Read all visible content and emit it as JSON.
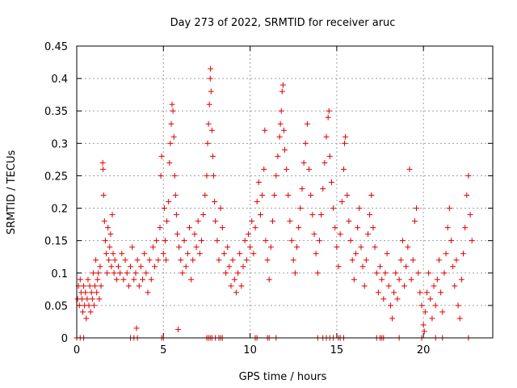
{
  "chart_data": {
    "type": "scatter",
    "title": "Day 273 of 2022, SRMTID for receiver aruc",
    "xlabel": "GPS time / hours",
    "ylabel": "SRMTID / TECUs",
    "xlim": [
      0,
      24
    ],
    "ylim": [
      0,
      0.45
    ],
    "xticks": [
      0,
      5,
      10,
      15,
      20
    ],
    "xtick_labels": [
      "0",
      "5",
      "10",
      "15",
      "20"
    ],
    "yticks": [
      0,
      0.05,
      0.1,
      0.15,
      0.2,
      0.25,
      0.3,
      0.35,
      0.4,
      0.45
    ],
    "ytick_labels": [
      "0",
      "0.05",
      "0.1",
      "0.15",
      "0.2",
      "0.25",
      "0.3",
      "0.35",
      "0.4",
      "0.45"
    ],
    "grid": true,
    "marker": "+",
    "color": "#e00000",
    "series": [
      {
        "name": "SRMTID",
        "points": [
          [
            0.05,
            0.06
          ],
          [
            0.1,
            0.08
          ],
          [
            0.15,
            0.05
          ],
          [
            0.2,
            0.09
          ],
          [
            0.25,
            0.07
          ],
          [
            0.3,
            0.06
          ],
          [
            0.35,
            0.04
          ],
          [
            0.4,
            0.08
          ],
          [
            0.45,
            0.05
          ],
          [
            0.5,
            0.07
          ],
          [
            0.55,
            0.03
          ],
          [
            0.6,
            0.06
          ],
          [
            0.65,
            0.09
          ],
          [
            0.7,
            0.05
          ],
          [
            0.75,
            0.08
          ],
          [
            0.8,
            0.04
          ],
          [
            0.85,
            0.07
          ],
          [
            0.9,
            0.06
          ],
          [
            0.95,
            0.1
          ],
          [
            1.0,
            0.05
          ],
          [
            1.05,
            0.08
          ],
          [
            1.1,
            0.12
          ],
          [
            1.15,
            0.07
          ],
          [
            1.2,
            0.09
          ],
          [
            1.25,
            0.1
          ],
          [
            1.3,
            0.06
          ],
          [
            1.35,
            0.11
          ],
          [
            1.4,
            0.08
          ],
          [
            1.5,
            0.27
          ],
          [
            1.52,
            0.26
          ],
          [
            1.55,
            0.22
          ],
          [
            1.6,
            0.18
          ],
          [
            1.65,
            0.15
          ],
          [
            1.7,
            0.13
          ],
          [
            1.75,
            0.1
          ],
          [
            1.8,
            0.17
          ],
          [
            1.85,
            0.12
          ],
          [
            1.9,
            0.14
          ],
          [
            1.95,
            0.16
          ],
          [
            2.0,
            0.11
          ],
          [
            2.05,
            0.19
          ],
          [
            2.1,
            0.13
          ],
          [
            2.15,
            0.1
          ],
          [
            2.2,
            0.12
          ],
          [
            2.3,
            0.09
          ],
          [
            2.4,
            0.11
          ],
          [
            2.5,
            0.1
          ],
          [
            2.6,
            0.13
          ],
          [
            2.7,
            0.09
          ],
          [
            2.8,
            0.12
          ],
          [
            2.9,
            0.1
          ],
          [
            3.0,
            0.08
          ],
          [
            3.1,
            0.11
          ],
          [
            3.2,
            0.14
          ],
          [
            3.3,
            0.09
          ],
          [
            3.4,
            0.1
          ],
          [
            3.45,
            0.015
          ],
          [
            3.5,
            0.12
          ],
          [
            3.6,
            0.08
          ],
          [
            3.7,
            0.11
          ],
          [
            3.8,
            0.09
          ],
          [
            3.9,
            0.13
          ],
          [
            4.0,
            0.1
          ],
          [
            4.1,
            0.07
          ],
          [
            4.2,
            0.12
          ],
          [
            4.3,
            0.09
          ],
          [
            4.4,
            0.14
          ],
          [
            4.5,
            0.11
          ],
          [
            4.6,
            0.15
          ],
          [
            4.7,
            0.12
          ],
          [
            4.8,
            0.17
          ],
          [
            4.85,
            0.25
          ],
          [
            4.9,
            0.28
          ],
          [
            5.0,
            0.13
          ],
          [
            5.05,
            0.2
          ],
          [
            5.1,
            0.15
          ],
          [
            5.15,
            0.12
          ],
          [
            5.2,
            0.18
          ],
          [
            5.3,
            0.21
          ],
          [
            5.35,
            0.27
          ],
          [
            5.4,
            0.3
          ],
          [
            5.45,
            0.33
          ],
          [
            5.5,
            0.36
          ],
          [
            5.55,
            0.35
          ],
          [
            5.6,
            0.31
          ],
          [
            5.65,
            0.25
          ],
          [
            5.7,
            0.22
          ],
          [
            5.75,
            0.19
          ],
          [
            5.8,
            0.16
          ],
          [
            5.85,
            0.013
          ],
          [
            5.9,
            0.14
          ],
          [
            6.0,
            0.12
          ],
          [
            6.1,
            0.1
          ],
          [
            6.2,
            0.15
          ],
          [
            6.3,
            0.11
          ],
          [
            6.4,
            0.13
          ],
          [
            6.5,
            0.17
          ],
          [
            6.6,
            0.09
          ],
          [
            6.7,
            0.12
          ],
          [
            6.8,
            0.16
          ],
          [
            6.9,
            0.14
          ],
          [
            7.0,
            0.18
          ],
          [
            7.1,
            0.13
          ],
          [
            7.2,
            0.15
          ],
          [
            7.3,
            0.19
          ],
          [
            7.4,
            0.22
          ],
          [
            7.5,
            0.25
          ],
          [
            7.55,
            0.3
          ],
          [
            7.6,
            0.33
          ],
          [
            7.65,
            0.36
          ],
          [
            7.7,
            0.4
          ],
          [
            7.72,
            0.415
          ],
          [
            7.75,
            0.38
          ],
          [
            7.8,
            0.32
          ],
          [
            7.85,
            0.28
          ],
          [
            7.9,
            0.25
          ],
          [
            7.95,
            0.21
          ],
          [
            8.0,
            0.18
          ],
          [
            8.1,
            0.15
          ],
          [
            8.2,
            0.12
          ],
          [
            8.3,
            0.2
          ],
          [
            8.4,
            0.17
          ],
          [
            8.5,
            0.13
          ],
          [
            8.6,
            0.1
          ],
          [
            8.7,
            0.14
          ],
          [
            8.8,
            0.11
          ],
          [
            8.9,
            0.08
          ],
          [
            9.0,
            0.12
          ],
          [
            9.1,
            0.09
          ],
          [
            9.2,
            0.07
          ],
          [
            9.3,
            0.1
          ],
          [
            9.4,
            0.13
          ],
          [
            9.5,
            0.08
          ],
          [
            9.6,
            0.11
          ],
          [
            9.7,
            0.15
          ],
          [
            9.8,
            0.12
          ],
          [
            9.9,
            0.16
          ],
          [
            10.0,
            0.14
          ],
          [
            10.1,
            0.18
          ],
          [
            10.2,
            0.13
          ],
          [
            10.3,
            0.17
          ],
          [
            10.4,
            0.21
          ],
          [
            10.5,
            0.24
          ],
          [
            10.6,
            0.19
          ],
          [
            10.7,
            0.22
          ],
          [
            10.8,
            0.26
          ],
          [
            10.85,
            0.32
          ],
          [
            10.9,
            0.15
          ],
          [
            11.0,
            0.12
          ],
          [
            11.1,
            0.09
          ],
          [
            11.2,
            0.14
          ],
          [
            11.3,
            0.18
          ],
          [
            11.4,
            0.22
          ],
          [
            11.5,
            0.25
          ],
          [
            11.6,
            0.28
          ],
          [
            11.7,
            0.31
          ],
          [
            11.75,
            0.33
          ],
          [
            11.8,
            0.35
          ],
          [
            11.85,
            0.38
          ],
          [
            11.9,
            0.39
          ],
          [
            11.95,
            0.32
          ],
          [
            12.0,
            0.29
          ],
          [
            12.1,
            0.26
          ],
          [
            12.2,
            0.22
          ],
          [
            12.3,
            0.18
          ],
          [
            12.4,
            0.15
          ],
          [
            12.5,
            0.12
          ],
          [
            12.6,
            0.1
          ],
          [
            12.7,
            0.14
          ],
          [
            12.8,
            0.17
          ],
          [
            12.9,
            0.2
          ],
          [
            13.0,
            0.23
          ],
          [
            13.1,
            0.27
          ],
          [
            13.2,
            0.3
          ],
          [
            13.3,
            0.33
          ],
          [
            13.4,
            0.26
          ],
          [
            13.5,
            0.22
          ],
          [
            13.6,
            0.19
          ],
          [
            13.7,
            0.16
          ],
          [
            13.8,
            0.13
          ],
          [
            13.9,
            0.1
          ],
          [
            14.0,
            0.15
          ],
          [
            14.1,
            0.19
          ],
          [
            14.2,
            0.23
          ],
          [
            14.3,
            0.27
          ],
          [
            14.4,
            0.31
          ],
          [
            14.5,
            0.34
          ],
          [
            14.55,
            0.35
          ],
          [
            14.6,
            0.28
          ],
          [
            14.7,
            0.24
          ],
          [
            14.8,
            0.2
          ],
          [
            14.9,
            0.17
          ],
          [
            15.0,
            0.14
          ],
          [
            15.1,
            0.11
          ],
          [
            15.2,
            0.16
          ],
          [
            15.3,
            0.21
          ],
          [
            15.4,
            0.26
          ],
          [
            15.45,
            0.3
          ],
          [
            15.5,
            0.31
          ],
          [
            15.6,
            0.22
          ],
          [
            15.7,
            0.18
          ],
          [
            15.8,
            0.15
          ],
          [
            15.9,
            0.12
          ],
          [
            16.0,
            0.09
          ],
          [
            16.1,
            0.13
          ],
          [
            16.2,
            0.17
          ],
          [
            16.3,
            0.2
          ],
          [
            16.4,
            0.14
          ],
          [
            16.5,
            0.11
          ],
          [
            16.6,
            0.08
          ],
          [
            16.7,
            0.12
          ],
          [
            16.8,
            0.16
          ],
          [
            16.9,
            0.19
          ],
          [
            17.0,
            0.22
          ],
          [
            17.1,
            0.17
          ],
          [
            17.2,
            0.14
          ],
          [
            17.3,
            0.1
          ],
          [
            17.4,
            0.07
          ],
          [
            17.5,
            0.11
          ],
          [
            17.6,
            0.09
          ],
          [
            17.7,
            0.06
          ],
          [
            17.8,
            0.1
          ],
          [
            17.9,
            0.13
          ],
          [
            18.0,
            0.08
          ],
          [
            18.1,
            0.05
          ],
          [
            18.2,
            0.03
          ],
          [
            18.3,
            0.07
          ],
          [
            18.4,
            0.1
          ],
          [
            18.5,
            0.06
          ],
          [
            18.6,
            0.09
          ],
          [
            18.7,
            0.12
          ],
          [
            18.8,
            0.15
          ],
          [
            18.9,
            0.08
          ],
          [
            19.0,
            0.11
          ],
          [
            19.1,
            0.14
          ],
          [
            19.2,
            0.26
          ],
          [
            19.3,
            0.09
          ],
          [
            19.4,
            0.12
          ],
          [
            19.5,
            0.18
          ],
          [
            19.6,
            0.2
          ],
          [
            19.7,
            0.1
          ],
          [
            19.8,
            0.07
          ],
          [
            19.9,
            0.05
          ],
          [
            20.0,
            0.02
          ],
          [
            20.05,
            0.01
          ],
          [
            20.1,
            0.04
          ],
          [
            20.2,
            0.07
          ],
          [
            20.3,
            0.1
          ],
          [
            20.4,
            0.06
          ],
          [
            20.5,
            0.03
          ],
          [
            20.6,
            0.08
          ],
          [
            20.7,
            0.05
          ],
          [
            20.8,
            0.09
          ],
          [
            20.9,
            0.12
          ],
          [
            21.0,
            0.07
          ],
          [
            21.1,
            0.04
          ],
          [
            21.2,
            0.1
          ],
          [
            21.3,
            0.13
          ],
          [
            21.4,
            0.17
          ],
          [
            21.5,
            0.2
          ],
          [
            21.6,
            0.15
          ],
          [
            21.7,
            0.11
          ],
          [
            21.8,
            0.08
          ],
          [
            21.9,
            0.12
          ],
          [
            22.0,
            0.05
          ],
          [
            22.1,
            0.03
          ],
          [
            22.2,
            0.09
          ],
          [
            22.3,
            0.13
          ],
          [
            22.4,
            0.17
          ],
          [
            22.5,
            0.22
          ],
          [
            22.6,
            0.25
          ],
          [
            22.7,
            0.19
          ],
          [
            22.8,
            0.15
          ]
        ],
        "zero_points": [
          0.0,
          0.2,
          0.4,
          3.1,
          3.3,
          3.5,
          4.9,
          5.0,
          7.5,
          7.6,
          7.7,
          7.8,
          8.0,
          8.2,
          8.3,
          8.4,
          10.3,
          10.4,
          11.0,
          11.1,
          11.5,
          13.9,
          14.2,
          14.4,
          14.6,
          14.8,
          15.1,
          15.2,
          15.4,
          17.3,
          17.5,
          17.6,
          17.7,
          18.6,
          19.9,
          20.7,
          21.1,
          22.6
        ]
      }
    ]
  }
}
